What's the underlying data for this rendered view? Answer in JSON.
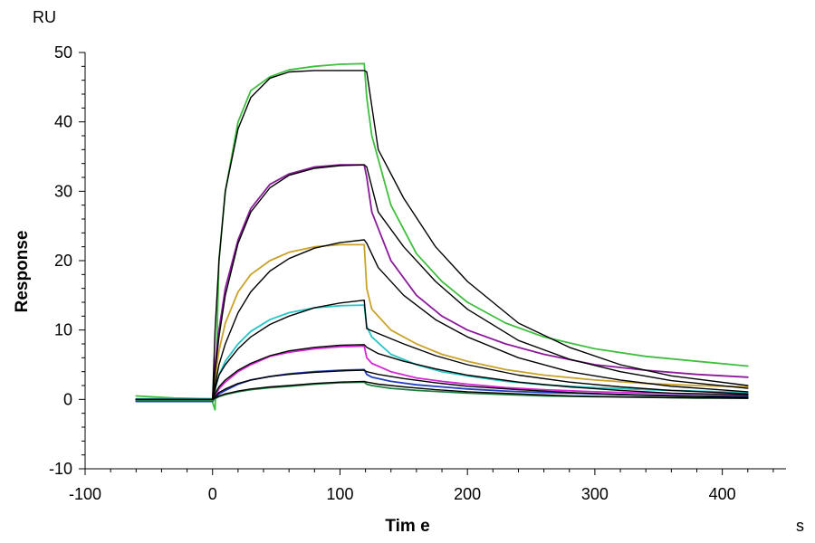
{
  "chart_data": {
    "type": "line",
    "title": "",
    "xlabel": "Tim e",
    "ylabel": "Response",
    "x_unit": "s",
    "y_unit": "RU",
    "xlim": [
      -100,
      450
    ],
    "ylim": [
      -10,
      50
    ],
    "x_ticks": [
      -100,
      0,
      100,
      200,
      300,
      400
    ],
    "y_ticks": [
      -10,
      0,
      10,
      20,
      30,
      40,
      50
    ],
    "grid": false,
    "legend": "none",
    "colors": {
      "axis": "#000000",
      "fit": "#000000",
      "green": "#3fbf3f",
      "purple": "#8b1a9b",
      "gold": "#c9a227",
      "cyan": "#26c6c6",
      "magenta": "#d426d4",
      "blue": "#1f3fbf",
      "darkgreen": "#1f7f3f"
    },
    "series": [
      {
        "kind": "measured",
        "color": "#3fbf3f",
        "x": [
          -60,
          -30,
          -1,
          2,
          5,
          10,
          20,
          30,
          45,
          60,
          80,
          100,
          119,
          121,
          125,
          140,
          160,
          180,
          200,
          230,
          260,
          300,
          340,
          380,
          420
        ],
        "y": [
          0.5,
          0.2,
          0.1,
          -1.5,
          20,
          30,
          40,
          44.5,
          46.5,
          47.5,
          48.0,
          48.3,
          48.4,
          43.5,
          38,
          28,
          21,
          17,
          14,
          11,
          9,
          7.3,
          6.2,
          5.5,
          4.8
        ]
      },
      {
        "kind": "fit",
        "color": "#000000",
        "x": [
          -60,
          0,
          2,
          5,
          10,
          20,
          30,
          45,
          60,
          80,
          100,
          119,
          121,
          130,
          150,
          175,
          200,
          240,
          280,
          320,
          360,
          420
        ],
        "y": [
          0,
          0,
          10,
          20,
          30,
          39,
          43.5,
          46.3,
          47.2,
          47.4,
          47.4,
          47.4,
          47.2,
          36,
          29,
          22,
          17,
          11,
          7.5,
          5,
          3.4,
          2
        ]
      },
      {
        "kind": "measured",
        "color": "#8b1a9b",
        "x": [
          -60,
          0,
          2,
          5,
          10,
          20,
          30,
          45,
          60,
          80,
          100,
          119,
          121,
          125,
          140,
          160,
          180,
          200,
          230,
          260,
          300,
          340,
          380,
          420
        ],
        "y": [
          -0.2,
          -0.2,
          5,
          10,
          16,
          23,
          27.5,
          31,
          32.5,
          33.5,
          33.8,
          33.8,
          32,
          27,
          20,
          15,
          12,
          10,
          8,
          6.5,
          5,
          4.2,
          3.6,
          3.2
        ]
      },
      {
        "kind": "fit",
        "color": "#000000",
        "x": [
          -60,
          0,
          2,
          5,
          10,
          20,
          30,
          45,
          60,
          80,
          100,
          119,
          121,
          130,
          150,
          175,
          200,
          240,
          280,
          320,
          360,
          420
        ],
        "y": [
          0,
          0,
          4,
          9,
          15,
          22.5,
          27,
          30.5,
          32.3,
          33.3,
          33.7,
          33.8,
          33.5,
          27,
          22,
          17,
          13,
          8.5,
          5.8,
          4,
          2.7,
          1.6
        ]
      },
      {
        "kind": "measured",
        "color": "#c9a227",
        "x": [
          -60,
          0,
          2,
          5,
          10,
          20,
          30,
          45,
          60,
          80,
          100,
          119,
          121,
          125,
          140,
          160,
          180,
          200,
          230,
          260,
          300,
          340,
          380,
          420
        ],
        "y": [
          -0.1,
          -0.1,
          3,
          7,
          11,
          15.5,
          18,
          20,
          21.2,
          22,
          22.3,
          22.3,
          16,
          13,
          10,
          8,
          6.5,
          5.5,
          4.3,
          3.5,
          2.8,
          2.3,
          2.0,
          1.8
        ]
      },
      {
        "kind": "fit",
        "color": "#000000",
        "x": [
          -60,
          0,
          2,
          5,
          10,
          20,
          30,
          45,
          60,
          80,
          100,
          119,
          121,
          130,
          150,
          175,
          200,
          240,
          280,
          320,
          360,
          420
        ],
        "y": [
          0,
          0,
          2,
          5,
          8,
          12.5,
          15.5,
          18.5,
          20.3,
          21.8,
          22.6,
          23.0,
          22.5,
          19,
          15,
          11.5,
          9,
          6,
          4,
          2.8,
          1.9,
          1.1
        ]
      },
      {
        "kind": "measured",
        "color": "#26c6c6",
        "x": [
          -60,
          0,
          2,
          5,
          10,
          20,
          30,
          45,
          60,
          80,
          100,
          119,
          121,
          125,
          140,
          160,
          180,
          200,
          230,
          260,
          300,
          340,
          380,
          420
        ],
        "y": [
          0.1,
          0.1,
          1.5,
          3.5,
          5.5,
          8,
          9.8,
          11.5,
          12.5,
          13.2,
          13.5,
          13.6,
          10.5,
          9,
          6.5,
          5,
          4,
          3.4,
          2.6,
          2.1,
          1.7,
          1.4,
          1.2,
          1.0
        ]
      },
      {
        "kind": "fit",
        "color": "#000000",
        "x": [
          -60,
          0,
          2,
          5,
          10,
          20,
          30,
          45,
          60,
          80,
          100,
          119,
          121,
          130,
          150,
          175,
          200,
          240,
          280,
          320,
          360,
          420
        ],
        "y": [
          0,
          0,
          1.5,
          3.5,
          5,
          7.3,
          9,
          10.8,
          12,
          13.2,
          13.9,
          14.3,
          10.2,
          9.5,
          8,
          6.3,
          5,
          3.5,
          2.5,
          1.8,
          1.3,
          0.8
        ]
      },
      {
        "kind": "measured",
        "color": "#d426d4",
        "x": [
          -60,
          0,
          2,
          5,
          10,
          20,
          30,
          45,
          60,
          80,
          100,
          119,
          121,
          125,
          140,
          160,
          180,
          200,
          230,
          260,
          300,
          340,
          380,
          420
        ],
        "y": [
          -0.1,
          -0.1,
          0.5,
          1.5,
          2.5,
          4,
          5,
          6.2,
          6.8,
          7.3,
          7.6,
          7.7,
          6,
          5.2,
          4,
          3.1,
          2.6,
          2.2,
          1.7,
          1.4,
          1.1,
          0.9,
          0.8,
          0.7
        ]
      },
      {
        "kind": "fit",
        "color": "#000000",
        "x": [
          -60,
          0,
          2,
          5,
          10,
          20,
          30,
          45,
          60,
          80,
          100,
          119,
          121,
          130,
          150,
          175,
          200,
          240,
          280,
          320,
          360,
          420
        ],
        "y": [
          0,
          0,
          0.8,
          1.8,
          2.8,
          4.2,
          5.2,
          6.3,
          7.0,
          7.5,
          7.8,
          7.9,
          7.5,
          6.6,
          5.5,
          4.4,
          3.5,
          2.5,
          1.8,
          1.3,
          0.9,
          0.6
        ]
      },
      {
        "kind": "measured",
        "color": "#1f3fbf",
        "x": [
          -60,
          0,
          2,
          5,
          10,
          20,
          30,
          45,
          60,
          80,
          100,
          119,
          121,
          125,
          140,
          160,
          180,
          200,
          230,
          260,
          300,
          340,
          380,
          420
        ],
        "y": [
          -0.3,
          -0.3,
          0.2,
          0.8,
          1.3,
          2.2,
          2.8,
          3.3,
          3.7,
          4.0,
          4.2,
          4.3,
          3.6,
          3.2,
          2.6,
          2.1,
          1.8,
          1.5,
          1.2,
          1.0,
          0.8,
          0.6,
          0.5,
          0.4
        ]
      },
      {
        "kind": "fit",
        "color": "#000000",
        "x": [
          -60,
          0,
          2,
          5,
          10,
          20,
          30,
          45,
          60,
          80,
          100,
          119,
          121,
          130,
          150,
          175,
          200,
          240,
          280,
          320,
          360,
          420
        ],
        "y": [
          0,
          0,
          0.4,
          1.0,
          1.5,
          2.3,
          2.8,
          3.3,
          3.6,
          3.9,
          4.1,
          4.2,
          4.0,
          3.6,
          3.0,
          2.4,
          1.9,
          1.4,
          1.0,
          0.7,
          0.5,
          0.3
        ]
      },
      {
        "kind": "measured",
        "color": "#1f7f3f",
        "x": [
          -60,
          0,
          2,
          5,
          10,
          20,
          30,
          45,
          60,
          80,
          100,
          119,
          121,
          125,
          140,
          160,
          180,
          200,
          230,
          260,
          300,
          340,
          380,
          420
        ],
        "y": [
          -0.1,
          -0.1,
          0.1,
          0.4,
          0.7,
          1.1,
          1.4,
          1.7,
          1.9,
          2.2,
          2.4,
          2.5,
          2.2,
          2.0,
          1.6,
          1.3,
          1.1,
          0.9,
          0.7,
          0.5,
          0.4,
          0.3,
          0.2,
          0.2
        ]
      },
      {
        "kind": "fit",
        "color": "#000000",
        "x": [
          -60,
          0,
          2,
          5,
          10,
          20,
          30,
          45,
          60,
          80,
          100,
          119,
          121,
          130,
          150,
          175,
          200,
          240,
          280,
          320,
          360,
          420
        ],
        "y": [
          0,
          0,
          0.2,
          0.5,
          0.8,
          1.2,
          1.5,
          1.8,
          2.0,
          2.3,
          2.5,
          2.6,
          2.5,
          2.2,
          1.8,
          1.4,
          1.1,
          0.8,
          0.5,
          0.35,
          0.25,
          0.15
        ]
      }
    ]
  }
}
